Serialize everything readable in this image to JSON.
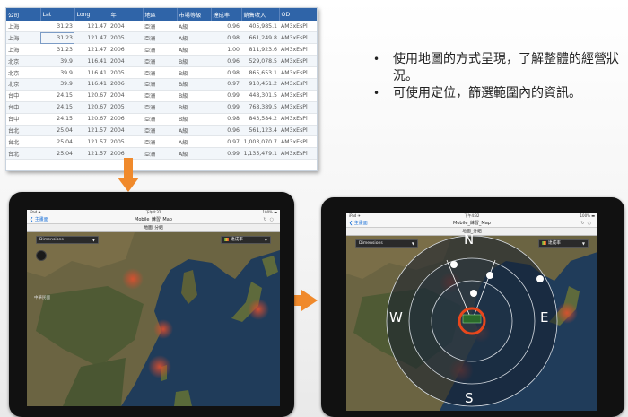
{
  "table": {
    "columns": [
      "公司",
      "Lat",
      "Long",
      "年",
      "地區",
      "市場等級",
      "達成率",
      "銷售收入",
      "OD"
    ],
    "rows": [
      [
        "上海",
        "31.23",
        "121.47",
        "2004",
        "亞洲",
        "A級",
        "0.96",
        "405,985.1",
        "AM3xEsPl"
      ],
      [
        "上海",
        "31.23",
        "121.47",
        "2005",
        "亞洲",
        "A級",
        "0.98",
        "661,249.8",
        "AM3xEsPl"
      ],
      [
        "上海",
        "31.23",
        "121.47",
        "2006",
        "亞洲",
        "A級",
        "1.00",
        "811,923.6",
        "AM3xEsPl"
      ],
      [
        "北京",
        "39.9",
        "116.41",
        "2004",
        "亞洲",
        "B級",
        "0.96",
        "529,078.5",
        "AM3xEsPl"
      ],
      [
        "北京",
        "39.9",
        "116.41",
        "2005",
        "亞洲",
        "B級",
        "0.98",
        "865,653.1",
        "AM3xEsPl"
      ],
      [
        "北京",
        "39.9",
        "116.41",
        "2006",
        "亞洲",
        "B級",
        "0.97",
        "910,451.2",
        "AM3xEsPl"
      ],
      [
        "台中",
        "24.15",
        "120.67",
        "2004",
        "亞洲",
        "B級",
        "0.99",
        "448,301.5",
        "AM3xEsPl"
      ],
      [
        "台中",
        "24.15",
        "120.67",
        "2005",
        "亞洲",
        "B級",
        "0.99",
        "768,389.5",
        "AM3xEsPl"
      ],
      [
        "台中",
        "24.15",
        "120.67",
        "2006",
        "亞洲",
        "B級",
        "0.98",
        "843,584.2",
        "AM3xEsPl"
      ],
      [
        "台北",
        "25.04",
        "121.57",
        "2004",
        "亞洲",
        "A級",
        "0.96",
        "561,123.4",
        "AM3xEsPl"
      ],
      [
        "台北",
        "25.04",
        "121.57",
        "2005",
        "亞洲",
        "A級",
        "0.97",
        "1,003,070.7",
        "AM3xEsPl"
      ],
      [
        "台北",
        "25.04",
        "121.57",
        "2006",
        "亞洲",
        "A級",
        "0.99",
        "1,135,479.1",
        "AM3xEsPl"
      ]
    ]
  },
  "bullets": [
    "使用地圖的方式呈現，了解整體的經營狀況。",
    "可使用定位，篩選範圍內的資訊。"
  ],
  "tablet": {
    "status_left": "iPad ✈",
    "status_time": "下午4:32",
    "status_right": "100% ▬",
    "back_label": "❮ 主畫面",
    "title": "Mobile_練習_Map",
    "subtitle": "地圖_分組",
    "dimension_label": "Dimensions",
    "measure_label": "達成率",
    "map_label": "中華民國"
  },
  "compass": {
    "north": "N",
    "south": "S",
    "east": "E",
    "west": "W"
  },
  "colors": {
    "table_header": "#2f64a8",
    "arrow": "#f08a2c",
    "hotspot": "#d9472b",
    "locator_ring": "#e8471c"
  }
}
